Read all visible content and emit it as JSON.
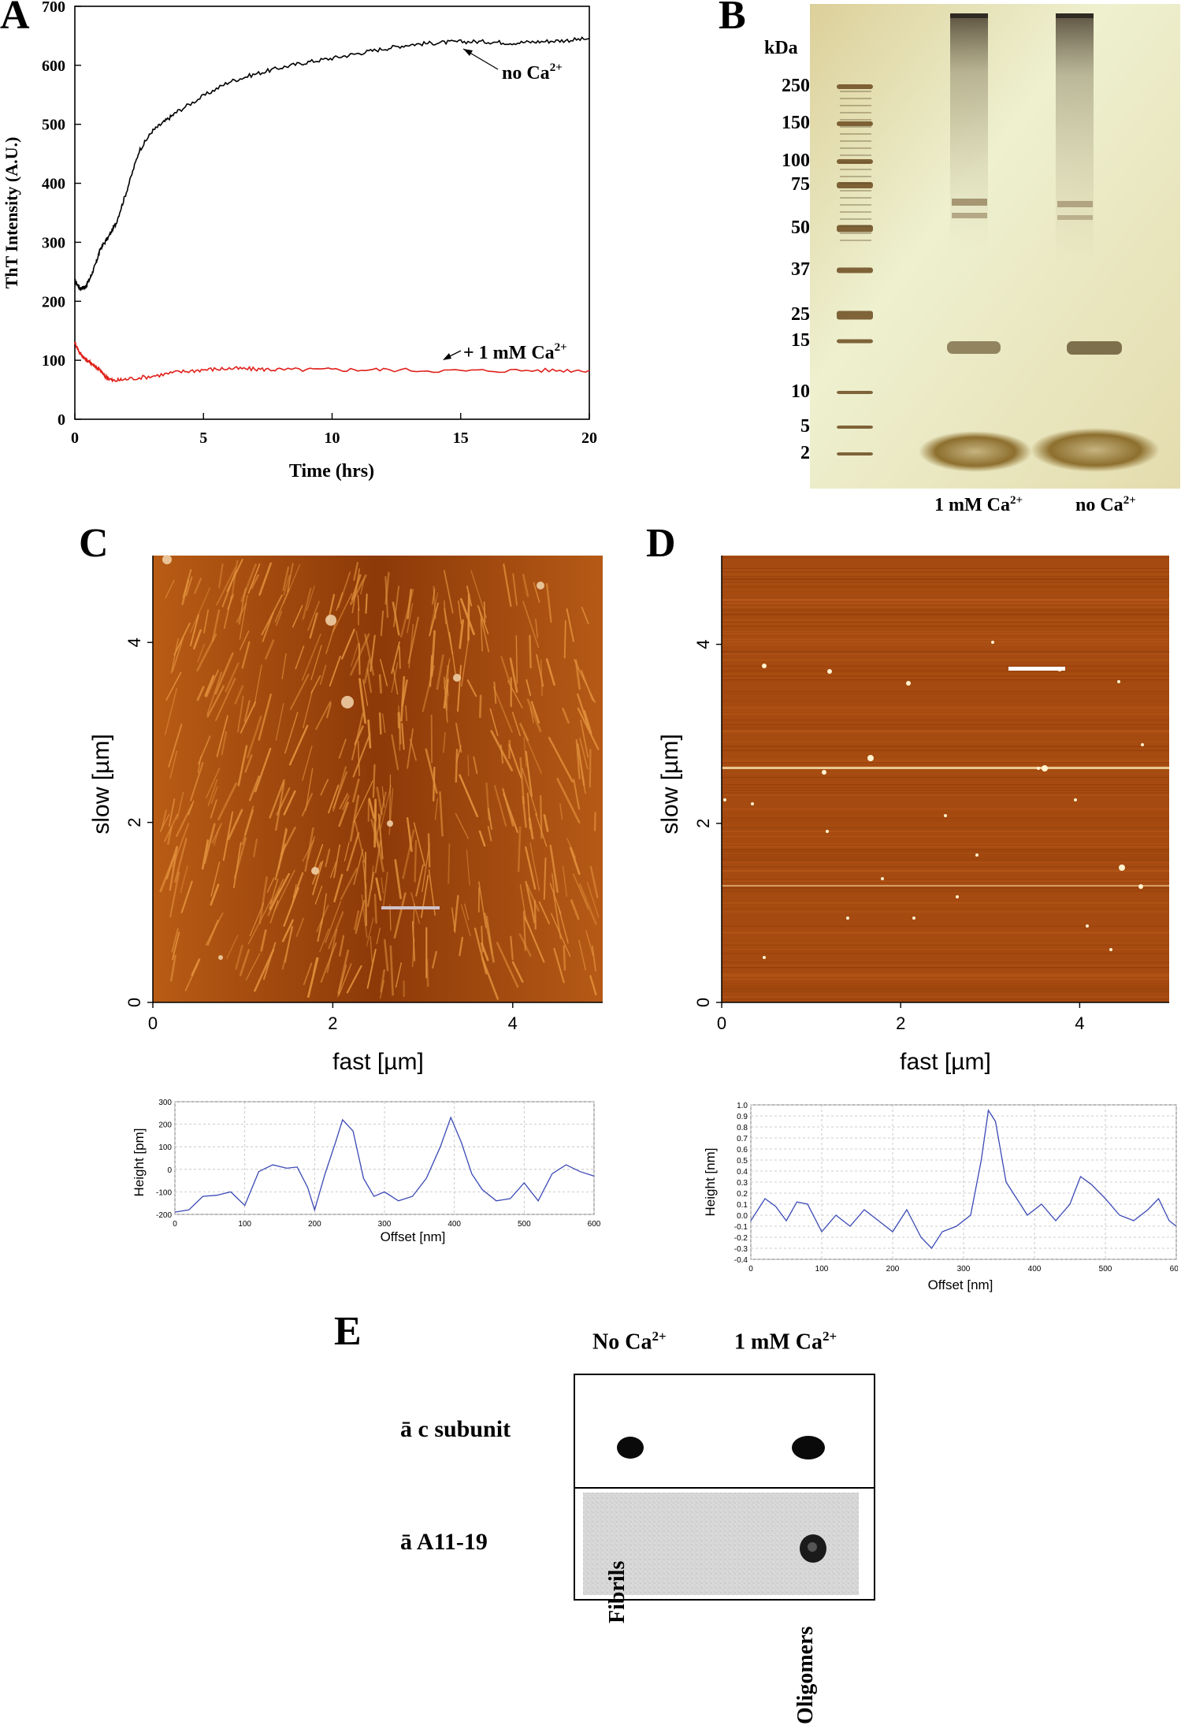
{
  "panels": {
    "a": {
      "label": "A",
      "chart_data": {
        "type": "line",
        "xlabel": "Time (hrs)",
        "ylabel": "ThT Intensity (A.U.)",
        "xlim": [
          0,
          20
        ],
        "ylim": [
          0,
          700
        ],
        "xticks": [
          "0",
          "5",
          "10",
          "15",
          "20"
        ],
        "yticks": [
          "0",
          "100",
          "200",
          "300",
          "400",
          "500",
          "600",
          "700"
        ],
        "series": [
          {
            "name": "no Ca2+",
            "color": "#000000",
            "x": [
              0,
              0.2,
              0.4,
              0.6,
              0.8,
              1.0,
              1.3,
              1.6,
              2.0,
              2.5,
              3.0,
              3.5,
              4.0,
              5.0,
              6.0,
              7.0,
              8.0,
              9.0,
              10.0,
              11.0,
              12.0,
              13.0,
              14.0,
              15.0,
              16.0,
              17.0,
              18.0,
              19.0,
              20.0
            ],
            "y": [
              235,
              222,
              224,
              240,
              262,
              290,
              308,
              332,
              385,
              455,
              488,
              505,
              522,
              548,
              572,
              585,
              596,
              605,
              612,
              620,
              628,
              635,
              638,
              640,
              640,
              638,
              640,
              642,
              645
            ]
          },
          {
            "name": "+ 1 mM Ca2+",
            "color": "#e0201b",
            "x": [
              0,
              0.2,
              0.4,
              0.6,
              0.8,
              1.0,
              1.2,
              1.5,
              2.0,
              3.0,
              4.0,
              5.0,
              6.0,
              7.0,
              8.0,
              10.0,
              12.0,
              15.0,
              18.0,
              20.0
            ],
            "y": [
              130,
              112,
              102,
              96,
              90,
              82,
              72,
              65,
              68,
              73,
              80,
              84,
              86,
              85,
              84,
              84,
              84,
              82,
              83,
              83
            ]
          }
        ],
        "annotations": [
          {
            "text": "no Ca",
            "sup": "2+"
          },
          {
            "text": "+ 1 mM Ca",
            "sup": "2+"
          }
        ]
      }
    },
    "b": {
      "label": "B",
      "kda_label": "kDa",
      "markers": [
        "250",
        "150",
        "100",
        "75",
        "50",
        "37",
        "25",
        "15",
        "10",
        "5",
        "2"
      ],
      "lanes": [
        {
          "text": "1 mM Ca",
          "sup": "2+"
        },
        {
          "text": "no Ca",
          "sup": "2+"
        }
      ],
      "colors": {
        "gel_bg": "#e8e3b5",
        "band": "#6b4a1e"
      }
    },
    "c": {
      "label": "C",
      "image_xlabel": "fast [µm]",
      "image_ylabel": "slow [µm]",
      "xticks": [
        "0",
        "2",
        "4"
      ],
      "yticks": [
        "0",
        "2",
        "4"
      ],
      "colors": {
        "afm_base": "#9a3e0a",
        "afm_fibril": "#e2913c"
      },
      "chart_data": {
        "type": "line",
        "xlabel": "Offset [nm]",
        "ylabel": "Height [pm]",
        "xlim": [
          0,
          600
        ],
        "ylim": [
          -200,
          300
        ],
        "xticks": [
          "0",
          "100",
          "200",
          "300",
          "400",
          "500",
          "600"
        ],
        "yticks": [
          "-200",
          "-100",
          "0",
          "100",
          "200",
          "300"
        ],
        "series": [
          {
            "color": "#3b49b5",
            "x": [
              0,
              20,
              40,
              60,
              80,
              100,
              120,
              140,
              160,
              175,
              190,
              200,
              215,
              230,
              240,
              255,
              270,
              285,
              300,
              320,
              340,
              360,
              380,
              395,
              410,
              425,
              440,
              460,
              480,
              500,
              520,
              540,
              560,
              580,
              600
            ],
            "y": [
              -190,
              -180,
              -120,
              -115,
              -100,
              -160,
              -10,
              20,
              5,
              10,
              -80,
              -180,
              -20,
              120,
              220,
              170,
              -40,
              -120,
              -100,
              -140,
              -120,
              -40,
              100,
              230,
              120,
              -20,
              -90,
              -140,
              -130,
              -60,
              -140,
              -20,
              20,
              -10,
              -30
            ]
          }
        ]
      }
    },
    "d": {
      "label": "D",
      "image_xlabel": "fast [µm]",
      "image_ylabel": "slow [µm]",
      "xticks": [
        "0",
        "2",
        "4"
      ],
      "yticks": [
        "0",
        "2",
        "4"
      ],
      "colors": {
        "afm_base": "#a8480e",
        "afm_dot": "#fff3d0"
      },
      "chart_data": {
        "type": "line",
        "xlabel": "Offset [nm]",
        "ylabel": "Height [nm]",
        "xlim": [
          0,
          600
        ],
        "ylim": [
          -0.4,
          1.0
        ],
        "xticks": [
          "0",
          "100",
          "200",
          "300",
          "400",
          "500",
          "600"
        ],
        "yticks": [
          "-0.4",
          "-0.3",
          "-0.2",
          "-0.1",
          "0.0",
          "0.1",
          "0.2",
          "0.3",
          "0.4",
          "0.5",
          "0.6",
          "0.7",
          "0.8",
          "0.9",
          "1.0"
        ],
        "series": [
          {
            "color": "#3b49b5",
            "x": [
              0,
              10,
              20,
              35,
              50,
              65,
              80,
              100,
              120,
              140,
              160,
              180,
              200,
              220,
              240,
              255,
              270,
              290,
              310,
              325,
              335,
              345,
              360,
              375,
              390,
              410,
              430,
              450,
              465,
              480,
              500,
              520,
              540,
              560,
              575,
              590,
              600
            ],
            "y": [
              -0.05,
              0.05,
              0.15,
              0.08,
              -0.05,
              0.12,
              0.1,
              -0.15,
              0.0,
              -0.1,
              0.05,
              -0.05,
              -0.15,
              0.05,
              -0.2,
              -0.3,
              -0.15,
              -0.1,
              0.0,
              0.5,
              0.95,
              0.85,
              0.3,
              0.15,
              0.0,
              0.1,
              -0.05,
              0.1,
              0.35,
              0.28,
              0.15,
              0.0,
              -0.05,
              0.05,
              0.15,
              -0.05,
              -0.1
            ]
          }
        ]
      }
    },
    "e": {
      "label": "E",
      "cols": [
        {
          "text": "No Ca",
          "sup": "2+"
        },
        {
          "text": "1 mM Ca",
          "sup": "2+"
        }
      ],
      "rows": [
        "ā c subunit",
        "ā A11-19"
      ],
      "bottom": [
        "Fibrils",
        "Oligomers"
      ]
    }
  }
}
